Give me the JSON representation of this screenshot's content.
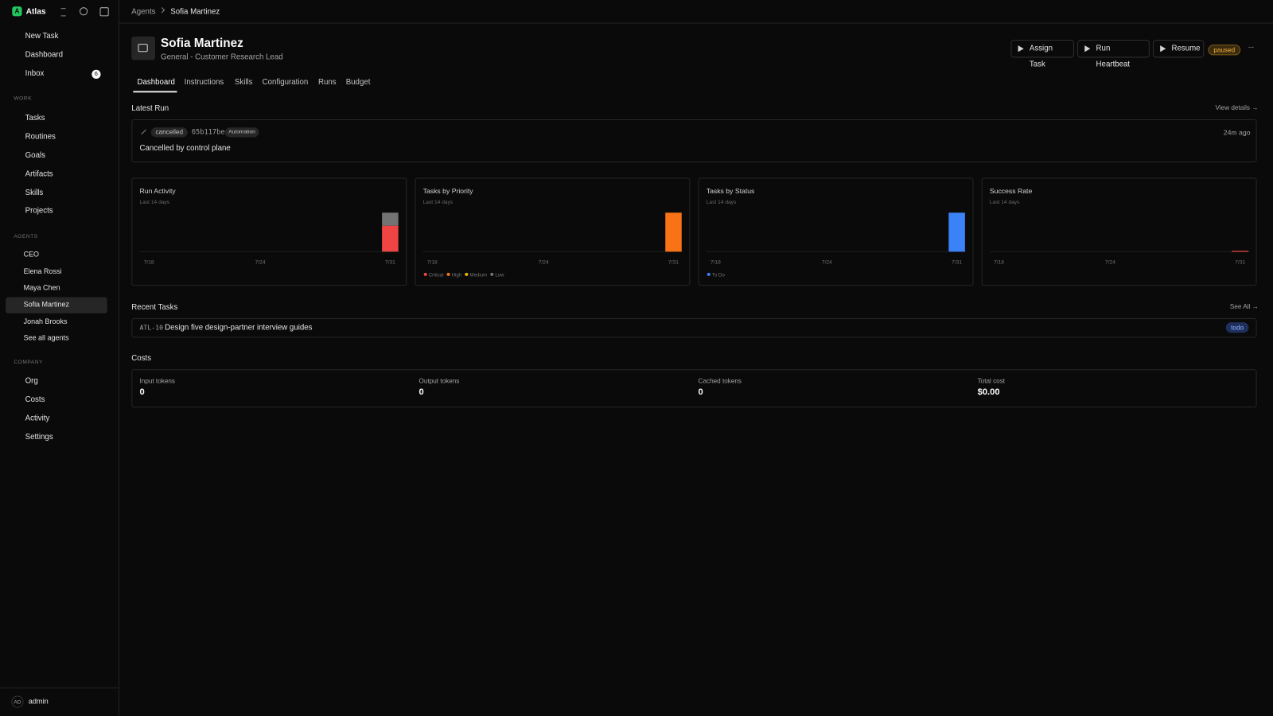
{
  "sidebar": {
    "workspace_initial": "A",
    "workspace": "Atlas",
    "nav": [
      {
        "label": "New Task"
      },
      {
        "label": "Dashboard"
      },
      {
        "label": "Inbox",
        "badge": 6
      }
    ],
    "sections": [
      {
        "title": "WORK",
        "items": [
          "Tasks",
          "Routines",
          "Goals",
          "Artifacts",
          "Skills",
          "Projects"
        ]
      },
      {
        "title": "AGENTS",
        "items": [
          "CEO",
          "Elena Rossi",
          "Maya Chen",
          "Sofia Martinez",
          "Jonah Brooks",
          "See all agents"
        ],
        "active": 3
      },
      {
        "title": "COMPANY",
        "items": [
          "Org",
          "Costs",
          "Activity",
          "Settings"
        ]
      }
    ],
    "user": {
      "initials": "AD",
      "name": "admin"
    }
  },
  "breadcrumb": [
    "Agents",
    "Sofia Martinez"
  ],
  "header": {
    "name": "Sofia Martinez",
    "subtitle": "General - Customer Research Lead",
    "actions": [
      "Assign Task",
      "Run Heartbeat",
      "Resume"
    ],
    "status": "paused"
  },
  "tabs": {
    "items": [
      "Dashboard",
      "Instructions",
      "Skills",
      "Configuration",
      "Runs",
      "Budget"
    ],
    "active": 0
  },
  "latest_run": {
    "title": "Latest Run",
    "link": "View details →",
    "status": "cancelled",
    "id": "65b117be",
    "tag": "Automation",
    "time": "24m ago",
    "message": "Cancelled by control plane"
  },
  "chart_data": [
    {
      "type": "bar",
      "title": "Run Activity",
      "subtitle": "Last 14 days",
      "categories": [
        "7/18",
        null,
        null,
        null,
        null,
        null,
        "7/24",
        null,
        null,
        null,
        null,
        null,
        null,
        "7/31"
      ],
      "series": [
        {
          "color": "#ef4444",
          "values": [
            0,
            0,
            0,
            0,
            0,
            0,
            0,
            0,
            0,
            0,
            0,
            0,
            0,
            2
          ]
        },
        {
          "color": "#737373",
          "values": [
            0,
            0,
            0,
            0,
            0,
            0,
            0,
            0,
            0,
            0,
            0,
            0,
            0,
            1
          ]
        }
      ]
    },
    {
      "type": "bar",
      "title": "Tasks by Priority",
      "subtitle": "Last 14 days",
      "categories": [
        "7/18",
        null,
        null,
        null,
        null,
        null,
        "7/24",
        null,
        null,
        null,
        null,
        null,
        null,
        "7/31"
      ],
      "series": [
        {
          "name": "Critical",
          "color": "#ef4444",
          "values": [
            0,
            0,
            0,
            0,
            0,
            0,
            0,
            0,
            0,
            0,
            0,
            0,
            0,
            0
          ]
        },
        {
          "name": "High",
          "color": "#f97316",
          "values": [
            0,
            0,
            0,
            0,
            0,
            0,
            0,
            0,
            0,
            0,
            0,
            0,
            0,
            1
          ]
        },
        {
          "name": "Medium",
          "color": "#eab308",
          "values": [
            0,
            0,
            0,
            0,
            0,
            0,
            0,
            0,
            0,
            0,
            0,
            0,
            0,
            0
          ]
        },
        {
          "name": "Low",
          "color": "#737373",
          "values": [
            0,
            0,
            0,
            0,
            0,
            0,
            0,
            0,
            0,
            0,
            0,
            0,
            0,
            0
          ]
        }
      ]
    },
    {
      "type": "bar",
      "title": "Tasks by Status",
      "subtitle": "Last 14 days",
      "categories": [
        "7/18",
        null,
        null,
        null,
        null,
        null,
        "7/24",
        null,
        null,
        null,
        null,
        null,
        null,
        "7/31"
      ],
      "series": [
        {
          "name": "To Do",
          "color": "#3b82f6",
          "values": [
            0,
            0,
            0,
            0,
            0,
            0,
            0,
            0,
            0,
            0,
            0,
            0,
            0,
            1
          ]
        }
      ]
    },
    {
      "type": "bar",
      "title": "Success Rate",
      "subtitle": "Last 14 days",
      "categories": [
        "7/18",
        null,
        null,
        null,
        null,
        null,
        "7/24",
        null,
        null,
        null,
        null,
        null,
        null,
        "7/31"
      ],
      "series": [
        {
          "color": "#ef4444",
          "values": [
            null,
            null,
            null,
            null,
            null,
            null,
            null,
            null,
            null,
            null,
            null,
            null,
            null,
            0
          ]
        }
      ]
    }
  ],
  "recent_tasks": {
    "title": "Recent Tasks",
    "link": "See All →",
    "items": [
      {
        "id": "ATL-10",
        "title": "Design five design-partner interview guides",
        "status": "todo"
      }
    ]
  },
  "costs": {
    "title": "Costs",
    "items": [
      {
        "label": "Input tokens",
        "value": 0
      },
      {
        "label": "Output tokens",
        "value": 0
      },
      {
        "label": "Cached tokens",
        "value": 0
      },
      {
        "label": "Total cost",
        "value": "$0.00"
      }
    ]
  }
}
